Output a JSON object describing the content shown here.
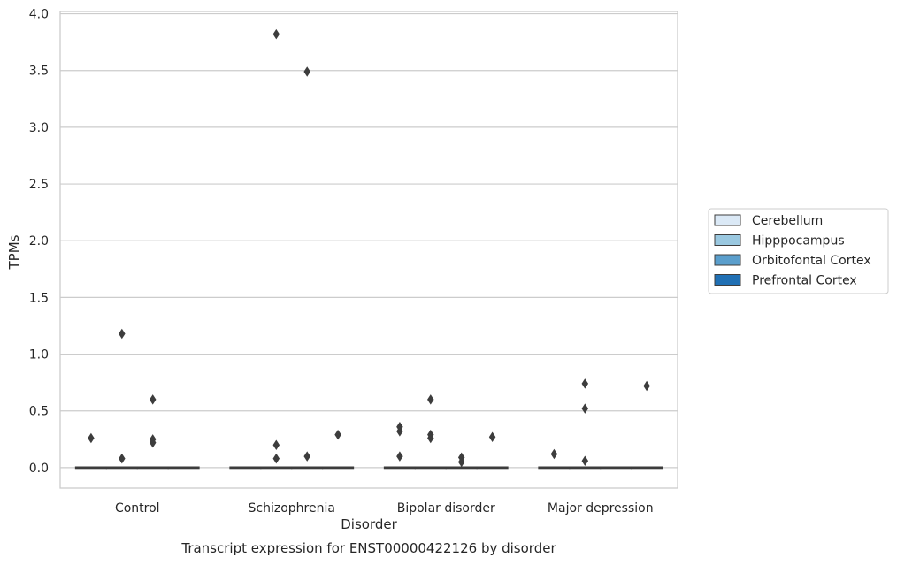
{
  "chart_data": {
    "type": "box",
    "title": "Transcript expression for ENST00000422126 by disorder",
    "xlabel": "Disorder",
    "ylabel": "TPMs",
    "ylim": [
      -0.18,
      4.02
    ],
    "yticks": [
      0.0,
      0.5,
      1.0,
      1.5,
      2.0,
      2.5,
      3.0,
      3.5,
      4.0
    ],
    "ytick_labels": [
      "0.0",
      "0.5",
      "1.0",
      "1.5",
      "2.0",
      "2.5",
      "3.0",
      "3.5",
      "4.0"
    ],
    "grid": true,
    "legend_position": "right",
    "categories": [
      "Control",
      "Schizophrenia",
      "Bipolar disorder",
      "Major depression"
    ],
    "series": [
      {
        "name": "Cerebellum",
        "color": "#dbe9f6",
        "boxes": [
          {
            "median": 0.0,
            "q1": 0.0,
            "q3": 0.0,
            "outliers": [
              0.26
            ]
          },
          {
            "median": 0.0,
            "q1": 0.0,
            "q3": 0.0,
            "outliers": []
          },
          {
            "median": 0.0,
            "q1": 0.0,
            "q3": 0.0,
            "outliers": [
              0.1,
              0.32,
              0.36
            ]
          },
          {
            "median": 0.0,
            "q1": 0.0,
            "q3": 0.0,
            "outliers": [
              0.12
            ]
          }
        ]
      },
      {
        "name": "Hipppocampus",
        "color": "#9ac8e0",
        "boxes": [
          {
            "median": 0.0,
            "q1": 0.0,
            "q3": 0.0,
            "outliers": [
              0.08,
              1.18
            ]
          },
          {
            "median": 0.0,
            "q1": 0.0,
            "q3": 0.0,
            "outliers": [
              3.82,
              0.2,
              0.08
            ]
          },
          {
            "median": 0.0,
            "q1": 0.0,
            "q3": 0.0,
            "outliers": [
              0.6,
              0.29,
              0.26
            ]
          },
          {
            "median": 0.0,
            "q1": 0.0,
            "q3": 0.0,
            "outliers": [
              0.74,
              0.52,
              0.06
            ]
          }
        ]
      },
      {
        "name": "Orbitofontal Cortex",
        "color": "#5a9ecc",
        "boxes": [
          {
            "median": 0.0,
            "q1": 0.0,
            "q3": 0.0,
            "outliers": [
              0.6,
              0.25,
              0.22
            ]
          },
          {
            "median": 0.0,
            "q1": 0.0,
            "q3": 0.0,
            "outliers": [
              3.49,
              0.1
            ]
          },
          {
            "median": 0.0,
            "q1": 0.0,
            "q3": 0.0,
            "outliers": [
              0.09,
              0.05
            ]
          },
          {
            "median": 0.0,
            "q1": 0.0,
            "q3": 0.0,
            "outliers": []
          }
        ]
      },
      {
        "name": "Prefrontal Cortex",
        "color": "#2070b4",
        "boxes": [
          {
            "median": 0.0,
            "q1": 0.0,
            "q3": 0.0,
            "outliers": []
          },
          {
            "median": 0.0,
            "q1": 0.0,
            "q3": 0.0,
            "outliers": [
              0.29
            ]
          },
          {
            "median": 0.0,
            "q1": 0.0,
            "q3": 0.0,
            "outliers": [
              0.27
            ]
          },
          {
            "median": 0.0,
            "q1": 0.0,
            "q3": 0.0,
            "outliers": [
              0.72
            ]
          }
        ]
      }
    ]
  }
}
